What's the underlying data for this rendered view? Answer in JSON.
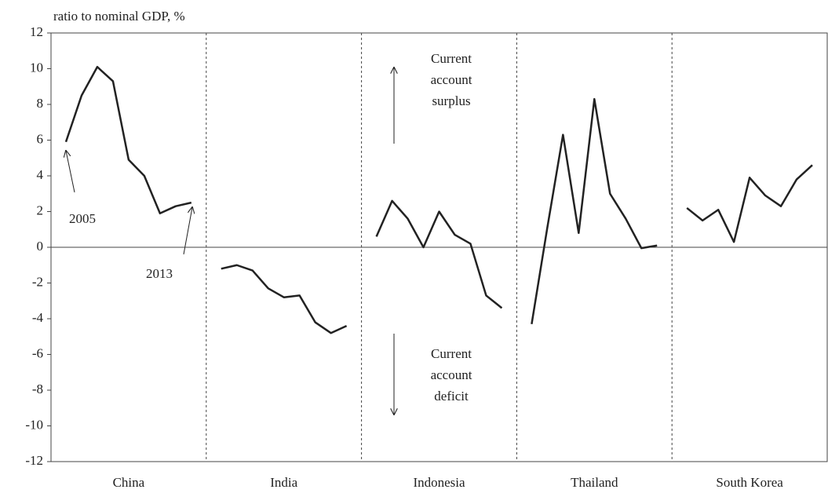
{
  "chart_data": {
    "type": "line",
    "ylabel": "ratio to nominal GDP, %",
    "ylim": [
      -12,
      12
    ],
    "yticks": [
      -12,
      -10,
      -8,
      -6,
      -4,
      -2,
      0,
      2,
      4,
      6,
      8,
      10,
      12
    ],
    "color": "#222",
    "series": [
      {
        "name": "China",
        "values": [
          5.9,
          8.5,
          10.1,
          9.3,
          4.9,
          4.0,
          1.9,
          2.3,
          2.5
        ]
      },
      {
        "name": "India",
        "values": [
          -1.2,
          -1.0,
          -1.3,
          -2.3,
          -2.8,
          -2.7,
          -4.2,
          -4.8,
          -4.4
        ]
      },
      {
        "name": "Indonesia",
        "values": [
          0.6,
          2.6,
          1.6,
          0.0,
          2.0,
          0.7,
          0.2,
          -2.7,
          -3.4
        ]
      },
      {
        "name": "Thailand",
        "values": [
          -4.3,
          1.1,
          6.3,
          0.8,
          8.3,
          3.0,
          1.6,
          -0.05,
          0.1
        ]
      },
      {
        "name": "South Korea",
        "values": [
          2.2,
          1.5,
          2.1,
          0.3,
          3.9,
          2.9,
          2.3,
          3.8,
          4.6
        ]
      }
    ],
    "annotations": {
      "start": "2005",
      "end": "2013",
      "surplus": [
        "Current",
        "account",
        "surplus"
      ],
      "deficit": [
        "Current",
        "account",
        "deficit"
      ]
    }
  }
}
